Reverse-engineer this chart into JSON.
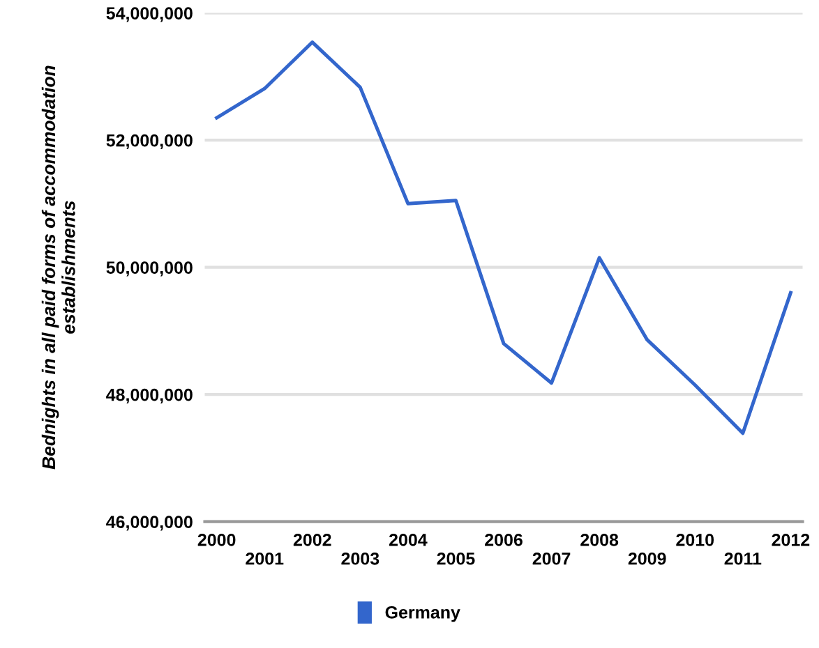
{
  "chart_data": {
    "type": "line",
    "ylabel": "Bednights in all paid forms of accommodation\nestablishments",
    "categories": [
      "2000",
      "2001",
      "2002",
      "2003",
      "2004",
      "2005",
      "2006",
      "2007",
      "2008",
      "2009",
      "2010",
      "2011",
      "2012"
    ],
    "series": [
      {
        "name": "Germany",
        "color": "#3366cc",
        "values": [
          52350000,
          52810000,
          53540000,
          52830000,
          51000000,
          51050000,
          48800000,
          48180000,
          50150000,
          48860000,
          48150000,
          47390000,
          49600000
        ]
      }
    ],
    "ylim": [
      46000000,
      54000000
    ],
    "yticks": [
      {
        "value": 46000000,
        "label": "46,000,000"
      },
      {
        "value": 48000000,
        "label": "48,000,000"
      },
      {
        "value": 50000000,
        "label": "50,000,000"
      },
      {
        "value": 52000000,
        "label": "52,000,000"
      },
      {
        "value": 54000000,
        "label": "54,000,000"
      }
    ],
    "grid": "y",
    "legend": "bottom",
    "marker": "none",
    "line_style": "solid"
  }
}
